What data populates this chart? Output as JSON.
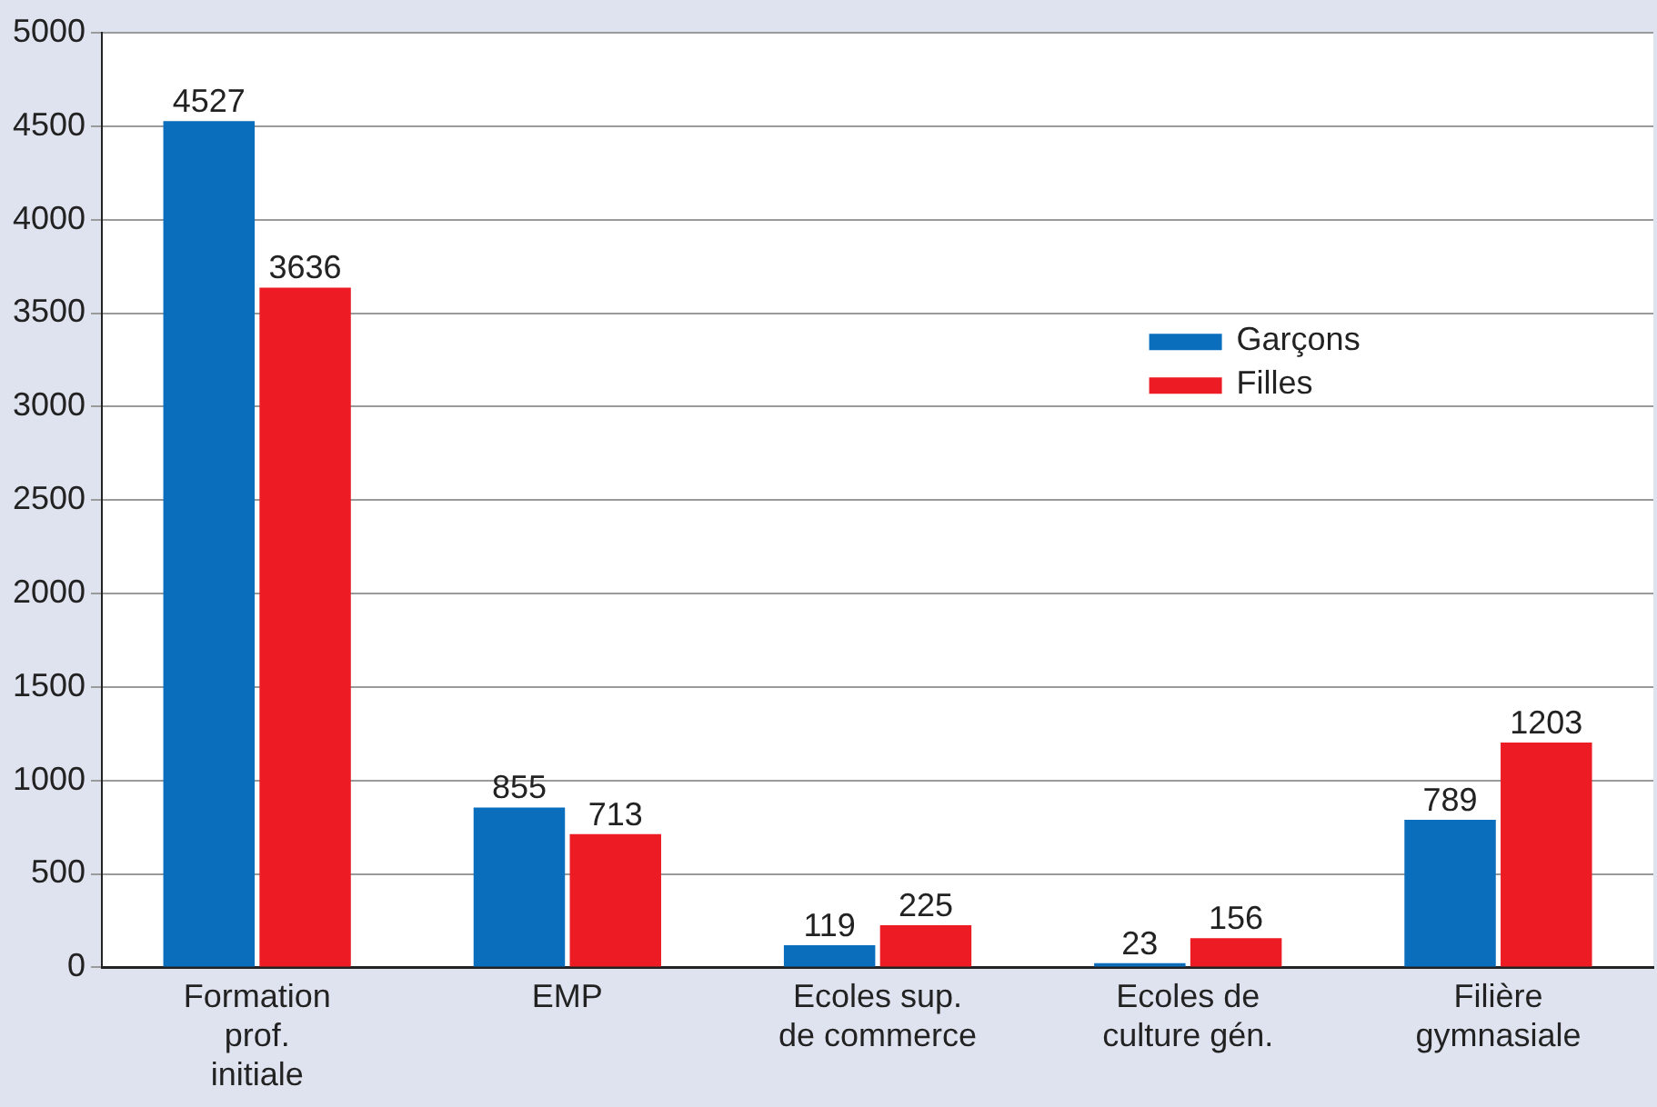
{
  "chart_data": {
    "type": "bar",
    "categories": [
      "Formation prof. initiale",
      "EMP",
      "Ecoles sup. de commerce",
      "Ecoles de culture gén.",
      "Filière gymnasiale"
    ],
    "series": [
      {
        "name": "Garçons",
        "color": "#0a6ebd",
        "values": [
          4527,
          855,
          119,
          23,
          789
        ]
      },
      {
        "name": "Filles",
        "color": "#ed1c24",
        "values": [
          3636,
          713,
          225,
          156,
          1203
        ]
      }
    ],
    "ylim": [
      0,
      5000
    ],
    "yticks": [
      0,
      500,
      1000,
      1500,
      2000,
      2500,
      3000,
      3500,
      4000,
      4500,
      5000
    ],
    "grid": "y",
    "legend": "right",
    "data_labels": true
  }
}
